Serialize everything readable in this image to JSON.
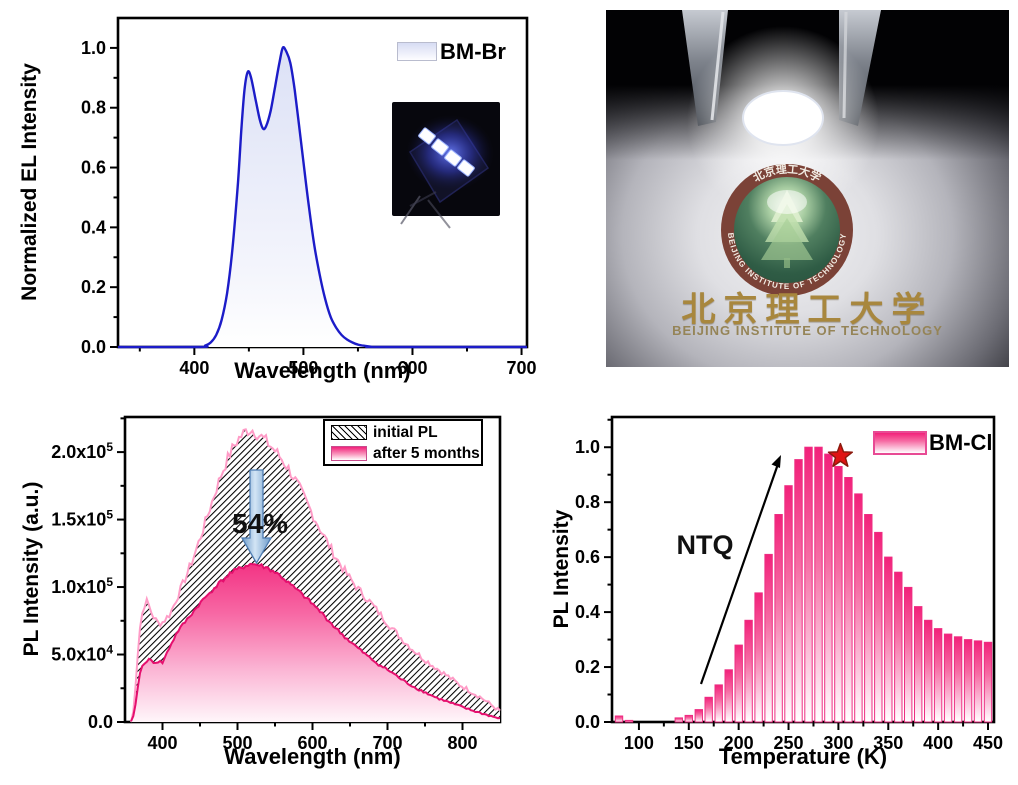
{
  "figure": {
    "description": "Four-panel OLED/PL characterization figure"
  },
  "colors": {
    "el_line": "#1c1cc8",
    "el_fill_top": "#dce1f6",
    "initial_pl_edge": "#ff9cc7",
    "aged_pl_edge": "#e50f6e",
    "pink": "#f2217a",
    "bar_edge": "#ee2d82",
    "star": "#e01313",
    "arrow_blue": "#6b9ac9"
  },
  "chart_data": [
    {
      "id": "el-spectrum",
      "type": "area",
      "xlabel": "Wavelength (nm)",
      "ylabel": "Normalized EL Intensity",
      "xlim": [
        330,
        705
      ],
      "ylim": [
        0,
        1.1
      ],
      "xticks": [
        400,
        500,
        600,
        700
      ],
      "xminor": [
        350,
        450,
        550,
        650
      ],
      "ytick_labels": [
        "0.0",
        "0.2",
        "0.4",
        "0.6",
        "0.8",
        "1.0"
      ],
      "yminor": [
        0.1,
        0.3,
        0.5,
        0.7,
        0.9
      ],
      "legend": {
        "label": "BM-Br",
        "swatch": "light-blue-gradient",
        "position": "top-right"
      },
      "inset": "photo of blue-emitting OLED device",
      "peaks": [
        {
          "x": 449,
          "y": 0.92
        },
        {
          "x": 481,
          "y": 1.0
        }
      ],
      "series": [
        {
          "name": "BM-Br",
          "x": [
            330,
            405,
            410,
            415,
            420,
            425,
            430,
            435,
            440,
            443,
            446,
            449,
            452,
            456,
            460,
            463,
            466,
            470,
            474,
            478,
            481,
            484,
            488,
            492,
            496,
            500,
            505,
            510,
            515,
            520,
            525,
            530,
            535,
            540,
            545,
            550,
            556,
            562,
            570,
            705
          ],
          "y": [
            0,
            0,
            0.005,
            0.015,
            0.04,
            0.09,
            0.18,
            0.33,
            0.55,
            0.72,
            0.86,
            0.92,
            0.9,
            0.83,
            0.76,
            0.73,
            0.74,
            0.79,
            0.87,
            0.95,
            1.0,
            0.99,
            0.95,
            0.86,
            0.74,
            0.62,
            0.47,
            0.34,
            0.24,
            0.16,
            0.1,
            0.065,
            0.04,
            0.025,
            0.015,
            0.008,
            0.004,
            0.001,
            0,
            0
          ]
        }
      ]
    },
    {
      "id": "pl-aging",
      "type": "area",
      "xlabel": "Wavelength (nm)",
      "ylabel": "PL Intensity (a.u.)",
      "xlim": [
        350,
        850
      ],
      "ylim": [
        0,
        226000
      ],
      "xticks": [
        400,
        500,
        600,
        700,
        800
      ],
      "xminor": [
        450,
        550,
        650,
        750
      ],
      "ytick_values": [
        0,
        50000,
        100000,
        150000,
        200000
      ],
      "ytick_labels": [
        {
          "t": "0.0"
        },
        {
          "t": "5.0x10",
          "sup": "4"
        },
        {
          "t": "1.0x10",
          "sup": "5"
        },
        {
          "t": "1.5x10",
          "sup": "5"
        },
        {
          "t": "2.0x10",
          "sup": "5"
        }
      ],
      "yminor": [
        25000,
        75000,
        125000,
        175000,
        225000
      ],
      "annotation": {
        "text": "54%",
        "arrow": "blue-down-block-arrow"
      },
      "series": [
        {
          "name": "initial PL",
          "style": "black-diagonal-hatch",
          "edge_color": "#ff9cc7",
          "x": [
            358,
            362,
            366,
            370,
            374,
            378,
            382,
            386,
            390,
            395,
            400,
            405,
            410,
            420,
            430,
            440,
            450,
            460,
            470,
            480,
            490,
            500,
            510,
            516,
            522,
            530,
            540,
            550,
            560,
            570,
            580,
            590,
            600,
            615,
            630,
            645,
            660,
            675,
            690,
            705,
            720,
            735,
            750,
            765,
            780,
            795,
            810,
            825,
            840,
            850
          ],
          "y": [
            0,
            10000,
            45000,
            70000,
            84000,
            90000,
            86000,
            80000,
            76000,
            73000,
            74000,
            77000,
            80000,
            93000,
            106000,
            120000,
            136000,
            153000,
            170000,
            186000,
            199000,
            209000,
            215000,
            217000,
            216000,
            212000,
            207000,
            201000,
            194000,
            186000,
            176000,
            165000,
            154000,
            138000,
            123000,
            110000,
            99000,
            90000,
            80000,
            70000,
            61000,
            53000,
            46000,
            40000,
            34000,
            28000,
            23000,
            18000,
            12000,
            8000
          ]
        },
        {
          "name": "after 5 months",
          "style": "pink-gradient",
          "edge_color": "#e50f6e",
          "x": [
            358,
            362,
            366,
            370,
            374,
            378,
            382,
            386,
            390,
            395,
            400,
            405,
            410,
            420,
            430,
            440,
            450,
            460,
            470,
            480,
            490,
            500,
            510,
            516,
            522,
            530,
            540,
            550,
            560,
            570,
            580,
            590,
            600,
            615,
            630,
            645,
            660,
            675,
            690,
            705,
            720,
            735,
            750,
            765,
            780,
            795,
            810,
            825,
            840,
            850
          ],
          "y": [
            0,
            5000,
            22000,
            36000,
            43000,
            45000,
            46000,
            45000,
            44000,
            45000,
            44000,
            50000,
            56000,
            67000,
            74000,
            81000,
            88000,
            94000,
            100000,
            105000,
            110000,
            113000,
            115500,
            117000,
            116800,
            116000,
            114000,
            111000,
            107000,
            102000,
            97500,
            92500,
            87500,
            79000,
            70000,
            62000,
            55000,
            48000,
            42000,
            37000,
            31000,
            26000,
            22000,
            18000,
            15000,
            12000,
            9000,
            6500,
            4000,
            2500
          ]
        }
      ]
    },
    {
      "id": "temperature-dependence",
      "type": "bar",
      "xlabel": "Temperature (K)",
      "ylabel": "PL Intensity",
      "xlim": [
        73,
        456
      ],
      "ylim": [
        0,
        1.11
      ],
      "xticks": [
        100,
        150,
        200,
        250,
        300,
        350,
        400,
        450
      ],
      "xminor": [
        125,
        175,
        225,
        275,
        325,
        375,
        425
      ],
      "ytick_labels": [
        "0.0",
        "0.2",
        "0.4",
        "0.6",
        "0.8",
        "1.0"
      ],
      "yminor": [
        0.1,
        0.3,
        0.5,
        0.7,
        0.9,
        1.1
      ],
      "legend": {
        "label": "BM-Cl",
        "swatch": "pink-gradient",
        "position": "top-right"
      },
      "annotation": {
        "text": "NTQ",
        "arrow": "black-up-arrow"
      },
      "star_marker": {
        "x": 300,
        "y": 0.975,
        "color": "#e01313"
      },
      "categories": [
        80,
        90,
        100,
        110,
        120,
        130,
        140,
        150,
        160,
        170,
        180,
        190,
        200,
        210,
        220,
        230,
        240,
        250,
        260,
        270,
        280,
        290,
        300,
        310,
        320,
        330,
        340,
        350,
        360,
        370,
        380,
        390,
        400,
        410,
        420,
        430,
        440,
        450
      ],
      "values": [
        0.022,
        0.006,
        0,
        0,
        0,
        0,
        0.015,
        0.024,
        0.045,
        0.09,
        0.135,
        0.19,
        0.28,
        0.37,
        0.47,
        0.61,
        0.755,
        0.86,
        0.955,
        1.0,
        1.0,
        0.975,
        0.93,
        0.89,
        0.83,
        0.755,
        0.69,
        0.6,
        0.545,
        0.49,
        0.42,
        0.37,
        0.34,
        0.32,
        0.31,
        0.3,
        0.295,
        0.29
      ]
    }
  ],
  "photo": {
    "description": "white LED held by metal tweezers illuminating the Beijing Institute of Technology seal on paper",
    "seal_top_text": "北京理工大学",
    "seal_ring_text": "BEIJING INSTITUTE OF TECHNOLOGY",
    "caption_cn": "北京理工大学",
    "caption_en": "BEIJING INSTITUTE OF TECHNOLOGY"
  }
}
